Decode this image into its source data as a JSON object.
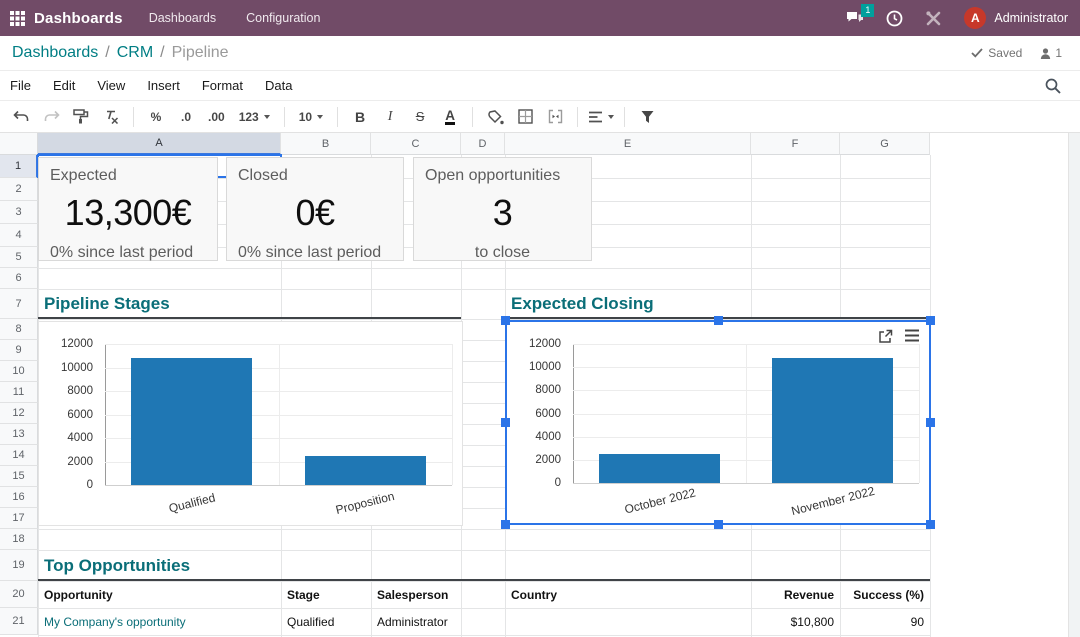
{
  "topbar": {
    "app_name": "Dashboards",
    "menus": [
      "Dashboards",
      "Configuration"
    ],
    "badge_count": "1",
    "user_initial": "A",
    "user_name": "Administrator"
  },
  "breadcrumb": {
    "items": [
      "Dashboards",
      "CRM",
      "Pipeline"
    ],
    "separator": "/",
    "saved_label": "Saved",
    "presence_count": "1"
  },
  "menubar": {
    "items": [
      "File",
      "Edit",
      "View",
      "Insert",
      "Format",
      "Data"
    ]
  },
  "toolbar": {
    "percent": "%",
    "decrease_decimal": ".0",
    "increase_decimal": ".00",
    "more_formats": "123",
    "font_size": "10",
    "bold": "B",
    "italic": "I",
    "strikethrough": "S",
    "text_color": "A"
  },
  "grid": {
    "columns": [
      "A",
      "B",
      "C",
      "D",
      "E",
      "F",
      "G"
    ],
    "rows": [
      "1",
      "2",
      "3",
      "4",
      "5",
      "6",
      "7",
      "8",
      "9",
      "10",
      "11",
      "12",
      "13",
      "14",
      "15",
      "16",
      "17",
      "18",
      "19",
      "20",
      "21"
    ]
  },
  "kpis": [
    {
      "title": "Expected",
      "value": "13,300€",
      "subtitle": "0% since last period"
    },
    {
      "title": "Closed",
      "value": "0€",
      "subtitle": "0% since last period"
    },
    {
      "title": "Open opportunities",
      "value": "3",
      "subtitle": "to close"
    }
  ],
  "sections": {
    "left_chart": "Pipeline Stages",
    "right_chart": "Expected Closing",
    "table": "Top Opportunities"
  },
  "chart_data": [
    {
      "type": "bar",
      "title": "Pipeline Stages",
      "categories": [
        "Qualified",
        "Proposition"
      ],
      "values": [
        10800,
        2500
      ],
      "ylim": [
        0,
        12000
      ],
      "yticks": [
        0,
        2000,
        4000,
        6000,
        8000,
        10000,
        12000
      ],
      "grid": true,
      "legend_position": "none",
      "bar_color": "#1f77b4"
    },
    {
      "type": "bar",
      "title": "Expected Closing",
      "categories": [
        "October 2022",
        "November 2022"
      ],
      "values": [
        2500,
        10800
      ],
      "ylim": [
        0,
        12000
      ],
      "yticks": [
        0,
        2000,
        4000,
        6000,
        8000,
        10000,
        12000
      ],
      "grid": true,
      "legend_position": "none",
      "bar_color": "#1f77b4",
      "selected": true
    }
  ],
  "table": {
    "headers": [
      "Opportunity",
      "Stage",
      "Salesperson",
      "Country",
      "Revenue",
      "Success (%)"
    ],
    "rows": [
      [
        "My Company's opportunity",
        "Qualified",
        "Administrator",
        "",
        "$10,800",
        "90"
      ]
    ]
  },
  "colors": {
    "topbar": "#714B67",
    "accent_teal": "#017e84",
    "heading_teal": "#0a6e78",
    "bar_blue": "#1f77b4",
    "selection_blue": "#2b74e8",
    "avatar_red": "#c7382a",
    "badge_teal": "#00a09d"
  }
}
